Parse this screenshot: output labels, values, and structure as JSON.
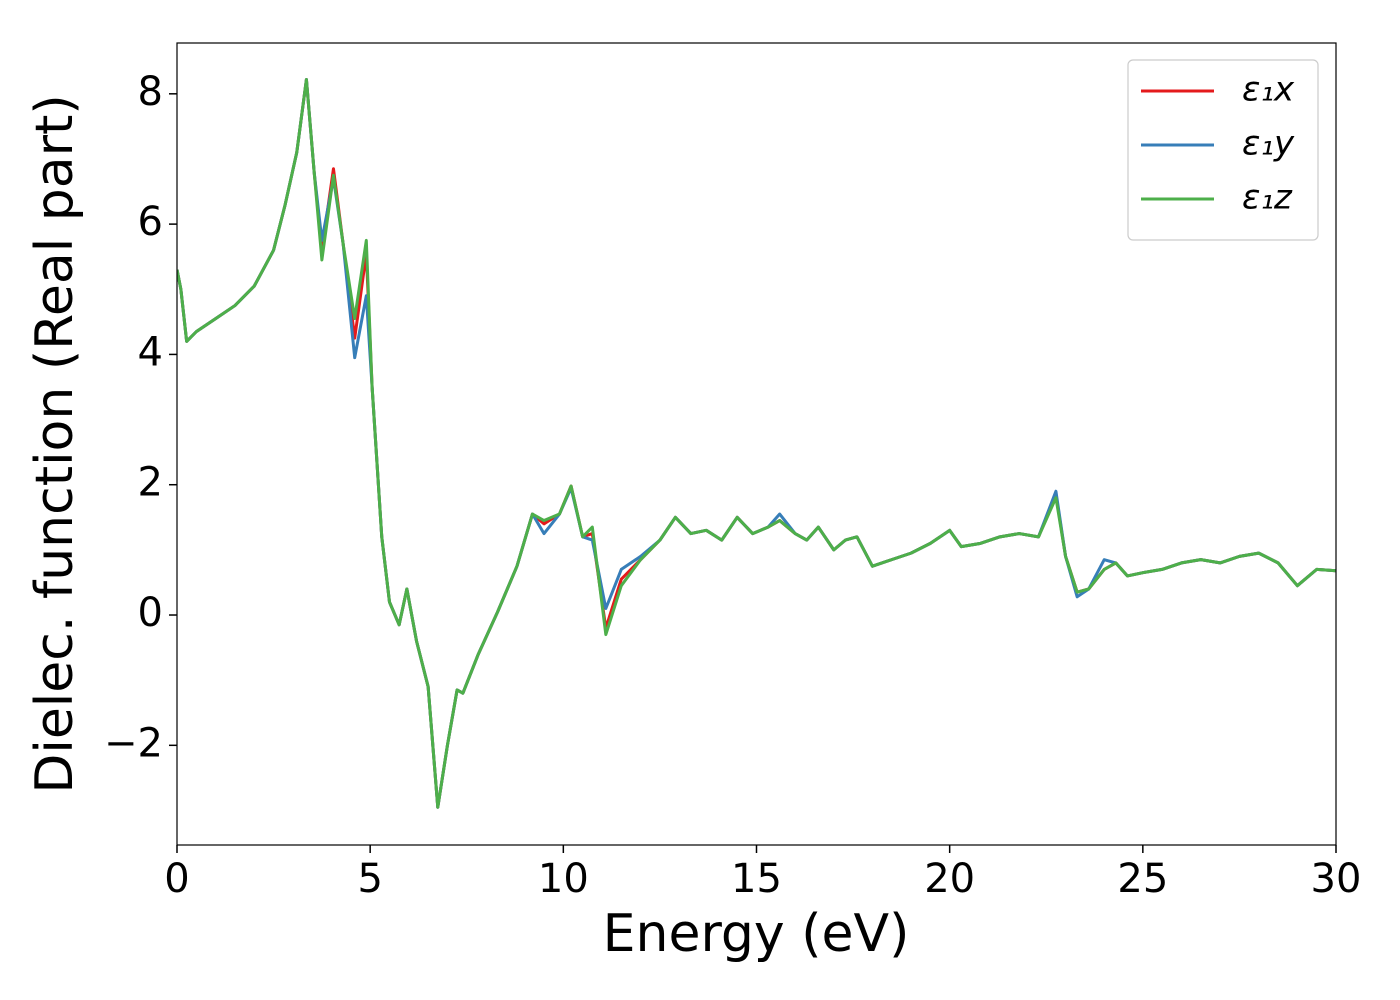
{
  "chart_data": {
    "type": "line",
    "xlabel": "Energy (eV)",
    "ylabel": "Dielec. function (Real part)",
    "x": [
      0,
      0.1,
      0.25,
      0.5,
      1,
      1.5,
      2,
      2.5,
      2.8,
      3.1,
      3.35,
      3.55,
      3.75,
      4.05,
      4.3,
      4.6,
      4.9,
      5.05,
      5.3,
      5.5,
      5.75,
      5.95,
      6.2,
      6.5,
      6.75,
      7.0,
      7.25,
      7.4,
      7.8,
      8.3,
      8.8,
      9.2,
      9.5,
      9.9,
      10.2,
      10.5,
      10.75,
      11.1,
      11.5,
      12,
      12.5,
      12.9,
      13.3,
      13.7,
      14.1,
      14.5,
      14.9,
      15.3,
      15.6,
      16,
      16.3,
      16.6,
      17,
      17.3,
      17.6,
      18,
      18.5,
      19,
      19.5,
      20,
      20.3,
      20.8,
      21.3,
      21.8,
      22.3,
      22.75,
      23.0,
      23.3,
      23.6,
      24,
      24.3,
      24.6,
      25,
      25.5,
      26,
      26.5,
      27,
      27.5,
      28,
      28.5,
      29,
      29.5,
      30
    ],
    "series": [
      {
        "name": "ε₁x",
        "color": "#e41a1c",
        "values": [
          5.3,
          5.0,
          4.2,
          4.35,
          4.55,
          4.75,
          5.05,
          5.6,
          6.3,
          7.1,
          8.22,
          6.8,
          5.6,
          6.85,
          5.7,
          4.25,
          5.55,
          3.5,
          1.2,
          0.2,
          -0.15,
          0.4,
          -0.4,
          -1.1,
          -2.95,
          -2.0,
          -1.15,
          -1.2,
          -0.6,
          0.05,
          0.75,
          1.55,
          1.4,
          1.55,
          1.98,
          1.2,
          1.25,
          -0.2,
          0.55,
          0.85,
          1.15,
          1.5,
          1.25,
          1.3,
          1.15,
          1.5,
          1.25,
          1.35,
          1.45,
          1.25,
          1.15,
          1.35,
          1.0,
          1.15,
          1.2,
          0.75,
          0.85,
          0.95,
          1.1,
          1.3,
          1.05,
          1.1,
          1.2,
          1.25,
          1.2,
          1.85,
          0.9,
          0.35,
          0.4,
          0.7,
          0.8,
          0.6,
          0.65,
          0.7,
          0.8,
          0.85,
          0.8,
          0.9,
          0.95,
          0.8,
          0.45,
          0.7,
          0.68
        ]
      },
      {
        "name": "ε₁y",
        "color": "#377eb8",
        "values": [
          5.3,
          5.0,
          4.2,
          4.35,
          4.55,
          4.75,
          5.05,
          5.6,
          6.3,
          7.1,
          8.22,
          6.8,
          5.75,
          6.7,
          5.7,
          3.95,
          4.9,
          3.5,
          1.2,
          0.2,
          -0.15,
          0.4,
          -0.4,
          -1.1,
          -2.95,
          -2.0,
          -1.15,
          -1.2,
          -0.6,
          0.05,
          0.75,
          1.55,
          1.25,
          1.55,
          1.95,
          1.2,
          1.15,
          0.1,
          0.7,
          0.9,
          1.15,
          1.5,
          1.25,
          1.3,
          1.15,
          1.5,
          1.25,
          1.35,
          1.55,
          1.25,
          1.15,
          1.35,
          1.0,
          1.15,
          1.2,
          0.75,
          0.85,
          0.95,
          1.1,
          1.3,
          1.05,
          1.1,
          1.2,
          1.25,
          1.2,
          1.9,
          0.9,
          0.28,
          0.4,
          0.85,
          0.8,
          0.6,
          0.65,
          0.7,
          0.8,
          0.85,
          0.8,
          0.9,
          0.95,
          0.8,
          0.45,
          0.7,
          0.68
        ]
      },
      {
        "name": "ε₁z",
        "color": "#4daf4a",
        "values": [
          5.3,
          5.0,
          4.2,
          4.35,
          4.55,
          4.75,
          5.05,
          5.6,
          6.3,
          7.1,
          8.22,
          6.8,
          5.45,
          6.75,
          5.7,
          4.55,
          5.75,
          3.5,
          1.2,
          0.2,
          -0.15,
          0.4,
          -0.4,
          -1.1,
          -2.95,
          -2.0,
          -1.15,
          -1.2,
          -0.6,
          0.05,
          0.75,
          1.55,
          1.45,
          1.55,
          1.98,
          1.2,
          1.35,
          -0.3,
          0.45,
          0.85,
          1.15,
          1.5,
          1.25,
          1.3,
          1.15,
          1.5,
          1.25,
          1.35,
          1.45,
          1.25,
          1.15,
          1.35,
          1.0,
          1.15,
          1.2,
          0.75,
          0.85,
          0.95,
          1.1,
          1.3,
          1.05,
          1.1,
          1.2,
          1.25,
          1.2,
          1.8,
          0.9,
          0.35,
          0.4,
          0.7,
          0.8,
          0.6,
          0.65,
          0.7,
          0.8,
          0.85,
          0.8,
          0.9,
          0.95,
          0.8,
          0.45,
          0.7,
          0.68
        ]
      }
    ],
    "xlim": [
      0,
      30
    ],
    "xticks": [
      0,
      5,
      10,
      15,
      20,
      25,
      30
    ],
    "ylim": [
      -3.53,
      8.78
    ],
    "yticks": [
      {
        "value": -2,
        "label": "−2"
      },
      0,
      2,
      4,
      6,
      8
    ],
    "grid": false,
    "legend": "upper right"
  }
}
